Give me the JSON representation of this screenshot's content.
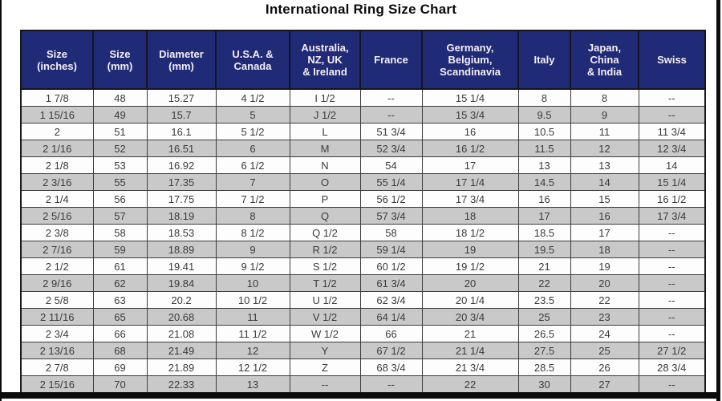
{
  "title": "International Ring Size Chart",
  "colors": {
    "header_bg": "#1f2b76",
    "header_text": "#f5eef5",
    "row_bg": "#fdfdfd",
    "row_alt_bg": "#c9c9c9",
    "body_text": "#3b3b3b"
  },
  "table": {
    "headers": [
      "Size\n(inches)",
      "Size\n(mm)",
      "Diameter\n(mm)",
      "U.S.A. &\nCanada",
      "Australia,\nNZ, UK\n& Ireland",
      "France",
      "Germany,\nBelgium,\nScandinavia",
      "Italy",
      "Japan,\nChina\n& India",
      "Swiss"
    ],
    "rows": [
      [
        "1 7/8",
        "48",
        "15.27",
        "4 1/2",
        "I 1/2",
        "--",
        "15 1/4",
        "8",
        "8",
        "--"
      ],
      [
        "1 15/16",
        "49",
        "15.7",
        "5",
        "J 1/2",
        "--",
        "15 3/4",
        "9.5",
        "9",
        "--"
      ],
      [
        "2",
        "51",
        "16.1",
        "5 1/2",
        "L",
        "51 3/4",
        "16",
        "10.5",
        "11",
        "11 3/4"
      ],
      [
        "2 1/16",
        "52",
        "16.51",
        "6",
        "M",
        "52 3/4",
        "16 1/2",
        "11.5",
        "12",
        "12 3/4"
      ],
      [
        "2 1/8",
        "53",
        "16.92",
        "6 1/2",
        "N",
        "54",
        "17",
        "13",
        "13",
        "14"
      ],
      [
        "2 3/16",
        "55",
        "17.35",
        "7",
        "O",
        "55 1/4",
        "17 1/4",
        "14.5",
        "14",
        "15 1/4"
      ],
      [
        "2 1/4",
        "56",
        "17.75",
        "7 1/2",
        "P",
        "56 1/2",
        "17 3/4",
        "16",
        "15",
        "16 1/2"
      ],
      [
        "2 5/16",
        "57",
        "18.19",
        "8",
        "Q",
        "57 3/4",
        "18",
        "17",
        "16",
        "17 3/4"
      ],
      [
        "2 3/8",
        "58",
        "18.53",
        "8 1/2",
        "Q 1/2",
        "58",
        "18 1/2",
        "18.5",
        "17",
        "--"
      ],
      [
        "2 7/16",
        "59",
        "18.89",
        "9",
        "R 1/2",
        "59 1/4",
        "19",
        "19.5",
        "18",
        "--"
      ],
      [
        "2 1/2",
        "61",
        "19.41",
        "9 1/2",
        "S 1/2",
        "60 1/2",
        "19 1/2",
        "21",
        "19",
        "--"
      ],
      [
        "2 9/16",
        "62",
        "19.84",
        "10",
        "T 1/2",
        "61 3/4",
        "20",
        "22",
        "20",
        "--"
      ],
      [
        "2 5/8",
        "63",
        "20.2",
        "10 1/2",
        "U 1/2",
        "62 3/4",
        "20 1/4",
        "23.5",
        "22",
        "--"
      ],
      [
        "2 11/16",
        "65",
        "20.68",
        "11",
        "V 1/2",
        "64 1/4",
        "20 3/4",
        "25",
        "23",
        "--"
      ],
      [
        "2 3/4",
        "66",
        "21.08",
        "11 1/2",
        "W 1/2",
        "66",
        "21",
        "26.5",
        "24",
        "--"
      ],
      [
        "2 13/16",
        "68",
        "21.49",
        "12",
        "Y",
        "67 1/2",
        "21 1/4",
        "27.5",
        "25",
        "27 1/2"
      ],
      [
        "2 7/8",
        "69",
        "21.89",
        "12 1/2",
        "Z",
        "68 3/4",
        "21 3/4",
        "28.5",
        "26",
        "28 3/4"
      ],
      [
        "2 15/16",
        "70",
        "22.33",
        "13",
        "--",
        "--",
        "22",
        "30",
        "27",
        "--"
      ]
    ]
  }
}
